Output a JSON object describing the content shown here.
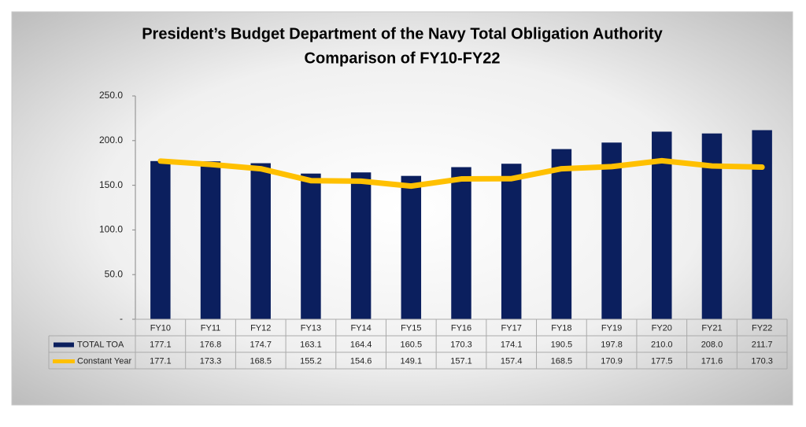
{
  "chart_data": {
    "type": "bar",
    "title": "President’s Budget Department of the Navy Total Obligation Authority",
    "subtitle": "Comparison of FY10-FY22",
    "categories": [
      "FY10",
      "FY11",
      "FY12",
      "FY13",
      "FY14",
      "FY15",
      "FY16",
      "FY17",
      "FY18",
      "FY19",
      "FY20",
      "FY21",
      "FY22"
    ],
    "series": [
      {
        "name": "TOTAL TOA",
        "type": "bar",
        "color": "#0b1f5e",
        "values": [
          177.1,
          176.8,
          174.7,
          163.1,
          164.4,
          160.5,
          170.3,
          174.1,
          190.5,
          197.8,
          210.0,
          208.0,
          211.7
        ],
        "value_labels": [
          "177.1",
          "176.8",
          "174.7",
          "163.1",
          "164.4",
          "160.5",
          "170.3",
          "174.1",
          "190.5",
          "197.8",
          "210.0",
          "208.0",
          "211.7"
        ]
      },
      {
        "name": "Constant Year",
        "type": "line",
        "color": "#ffc000",
        "values": [
          177.1,
          173.3,
          168.5,
          155.2,
          154.6,
          149.1,
          157.1,
          157.4,
          168.5,
          170.9,
          177.5,
          171.6,
          170.3
        ],
        "value_labels": [
          "177.1",
          "173.3",
          "168.5",
          "155.2",
          "154.6",
          "149.1",
          "157.1",
          "157.4",
          "168.5",
          "170.9",
          "177.5",
          "171.6",
          "170.3"
        ]
      }
    ],
    "ylim": [
      0,
      250
    ],
    "yticks": [
      {
        "value": 0,
        "label": "-"
      },
      {
        "value": 50,
        "label": "50.0"
      },
      {
        "value": 100,
        "label": "100.0"
      },
      {
        "value": 150,
        "label": "150.0"
      },
      {
        "value": 200,
        "label": "200.0"
      },
      {
        "value": 250,
        "label": "250.0"
      }
    ],
    "grid": false
  }
}
